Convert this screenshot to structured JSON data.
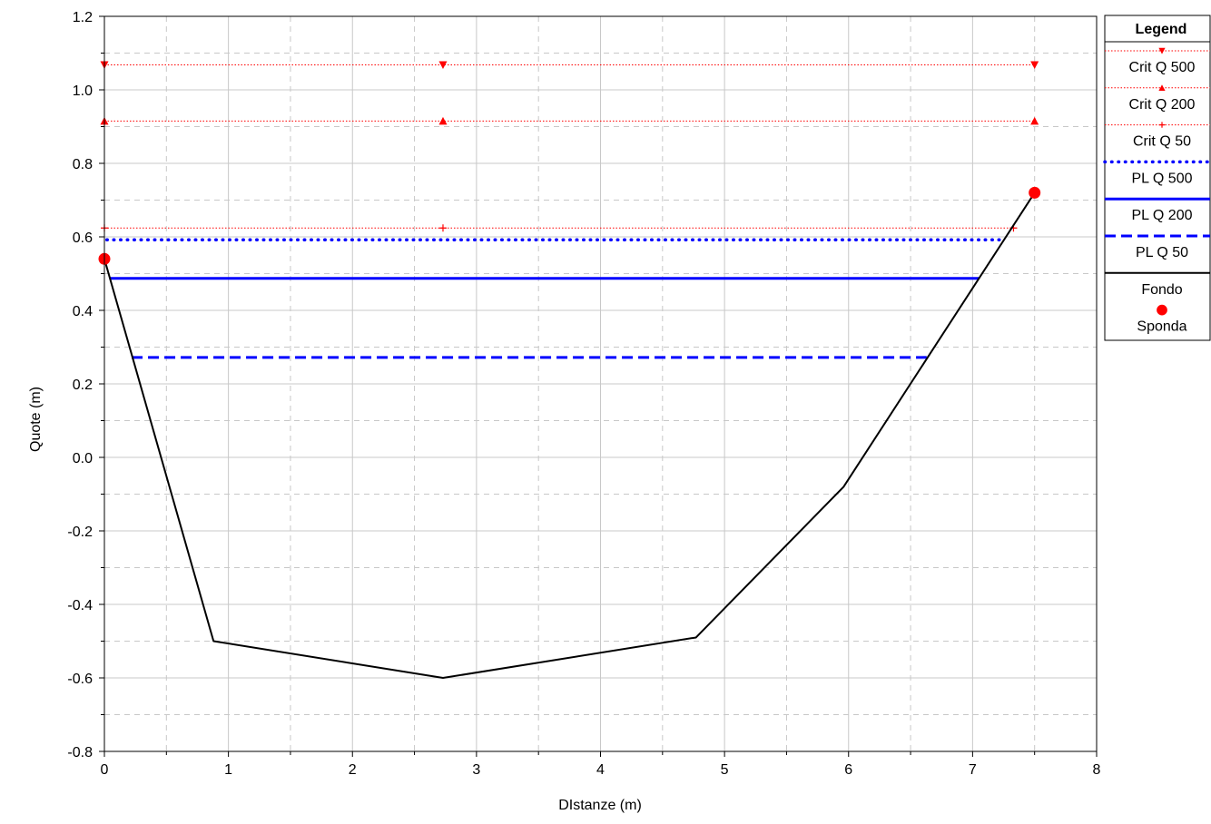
{
  "chart_data": {
    "type": "line",
    "title": "",
    "xlabel": "DIstanze (m)",
    "ylabel": "Quote (m)",
    "xlim": [
      0,
      8
    ],
    "ylim": [
      -0.8,
      1.2
    ],
    "x_major_ticks": [
      0,
      1,
      2,
      3,
      4,
      5,
      6,
      7,
      8
    ],
    "x_tick_labels": [
      "0",
      "1",
      "2",
      "3",
      "4",
      "5",
      "6",
      "7",
      "8"
    ],
    "y_major_ticks": [
      -0.8,
      -0.6,
      -0.4,
      -0.2,
      0.0,
      0.2,
      0.4,
      0.6,
      0.8,
      1.0,
      1.2
    ],
    "y_tick_labels": [
      "-0.8",
      "-0.6",
      "-0.4",
      "-0.2",
      "0.0",
      "0.2",
      "0.4",
      "0.6",
      "0.8",
      "1.0",
      "1.2"
    ],
    "x_minor_ticks": [
      0.5,
      1.5,
      2.5,
      3.5,
      4.5,
      5.5,
      6.5,
      7.5
    ],
    "y_minor_ticks": [
      -0.7,
      -0.5,
      -0.3,
      -0.1,
      0.1,
      0.3,
      0.5,
      0.7,
      0.9,
      1.1
    ],
    "grid": true,
    "legend_position": "right",
    "legend_title": "Legend",
    "series": [
      {
        "name": "Crit Q 500",
        "color": "#ff0000",
        "style": "dotted-thin",
        "marker": "triangle-down",
        "x": [
          0,
          7.5
        ],
        "y": [
          1.068,
          1.068
        ],
        "marker_x": [
          0,
          2.73,
          7.5
        ]
      },
      {
        "name": "Crit Q 200",
        "color": "#ff0000",
        "style": "dotted-thin",
        "marker": "triangle-up",
        "x": [
          0,
          7.5
        ],
        "y": [
          0.915,
          0.915
        ],
        "marker_x": [
          0,
          2.73,
          7.5
        ]
      },
      {
        "name": "Crit Q 50",
        "color": "#ff0000",
        "style": "dotted-thin",
        "marker": "plus",
        "x": [
          0,
          7.33
        ],
        "y": [
          0.624,
          0.624
        ],
        "marker_x": [
          0,
          2.73,
          7.33
        ]
      },
      {
        "name": "PL Q 500",
        "color": "#0000ff",
        "style": "dotted-thick",
        "marker": "none",
        "x": [
          0.02,
          7.22
        ],
        "y": [
          0.592,
          0.592
        ]
      },
      {
        "name": "PL Q 200",
        "color": "#0000ff",
        "style": "solid",
        "marker": "none",
        "x": [
          0.04,
          7.05
        ],
        "y": [
          0.487,
          0.487
        ]
      },
      {
        "name": "PL Q 50",
        "color": "#0000ff",
        "style": "dashed",
        "marker": "none",
        "x": [
          0.22,
          6.63
        ],
        "y": [
          0.272,
          0.272
        ]
      },
      {
        "name": "Fondo",
        "color": "#000000",
        "style": "solid-thin",
        "marker": "none",
        "x": [
          0,
          0.88,
          2.73,
          4.77,
          5.96,
          7.5
        ],
        "y": [
          0.54,
          -0.5,
          -0.6,
          -0.49,
          -0.08,
          0.72
        ]
      },
      {
        "name": "Sponda",
        "color": "#ff0000",
        "style": "none",
        "marker": "circle",
        "x": [
          0,
          7.5
        ],
        "y": [
          0.54,
          0.72
        ]
      }
    ]
  }
}
